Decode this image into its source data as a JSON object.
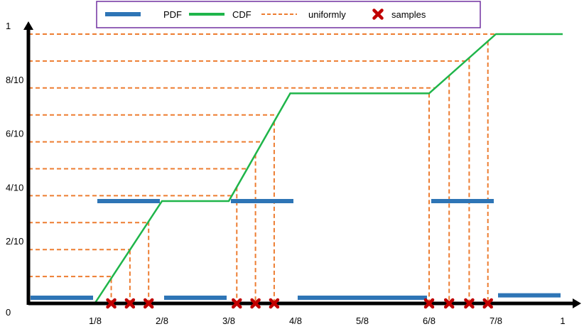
{
  "legend": {
    "items": [
      {
        "label": "PDF",
        "kind": "pdf"
      },
      {
        "label": "CDF",
        "kind": "cdf"
      },
      {
        "label": "uniformly",
        "kind": "uniform"
      },
      {
        "label": "samples",
        "kind": "sample"
      }
    ],
    "colors": {
      "border": "#7030a0",
      "pdf": "#2e75b6",
      "cdf": "#1fb54a",
      "uniform": "#ed7d31",
      "sample": "#c00000"
    }
  },
  "axes": {
    "x_ticks": [
      {
        "value": 0,
        "label": "0"
      },
      {
        "value": 0.25,
        "label": "1/8"
      },
      {
        "value": 0.5,
        "label": "2/8"
      },
      {
        "value": 0.75,
        "label": "3/8"
      },
      {
        "value": 1.0,
        "label": "4/8"
      },
      {
        "value": 1.25,
        "label": "5/8"
      },
      {
        "value": 1.5,
        "label": "6/8"
      },
      {
        "value": 1.75,
        "label": "7/8"
      },
      {
        "value": 2.0,
        "label": "1"
      }
    ],
    "y_ticks": [
      {
        "value": 0.2,
        "label": "2/10"
      },
      {
        "value": 0.4,
        "label": "4/10"
      },
      {
        "value": 0.6,
        "label": "6/10"
      },
      {
        "value": 0.8,
        "label": "8/10"
      },
      {
        "value": 1.0,
        "label": "1"
      }
    ]
  },
  "chart_data": {
    "type": "line",
    "x_range": [
      0,
      2
    ],
    "y_range": [
      0,
      1
    ],
    "pdf_segments": [
      {
        "x": [
          0.0,
          0.25
        ],
        "y": 0.0
      },
      {
        "x": [
          0.25,
          0.5
        ],
        "y": 0.38
      },
      {
        "x": [
          0.5,
          0.75
        ],
        "y": 0.0
      },
      {
        "x": [
          0.75,
          1.0
        ],
        "y": 0.38
      },
      {
        "x": [
          1.0,
          1.5
        ],
        "y": 0.0
      },
      {
        "x": [
          1.5,
          1.75
        ],
        "y": 0.38
      },
      {
        "x": [
          1.75,
          2.0
        ],
        "y": 0.03
      }
    ],
    "cdf_points": [
      [
        0.0,
        0.0
      ],
      [
        0.25,
        0.0
      ],
      [
        0.5,
        0.38
      ],
      [
        0.75,
        0.38
      ],
      [
        0.98,
        0.78
      ],
      [
        1.5,
        0.78
      ],
      [
        1.75,
        1.0
      ],
      [
        2.0,
        1.0
      ]
    ],
    "uniform_levels": [
      0.1,
      0.2,
      0.3,
      0.4,
      0.5,
      0.6,
      0.7,
      0.8,
      0.9,
      1.0
    ],
    "samples": [
      0.31,
      0.38,
      0.45,
      0.78,
      0.85,
      0.92,
      1.5,
      1.575,
      1.65,
      1.72
    ]
  }
}
